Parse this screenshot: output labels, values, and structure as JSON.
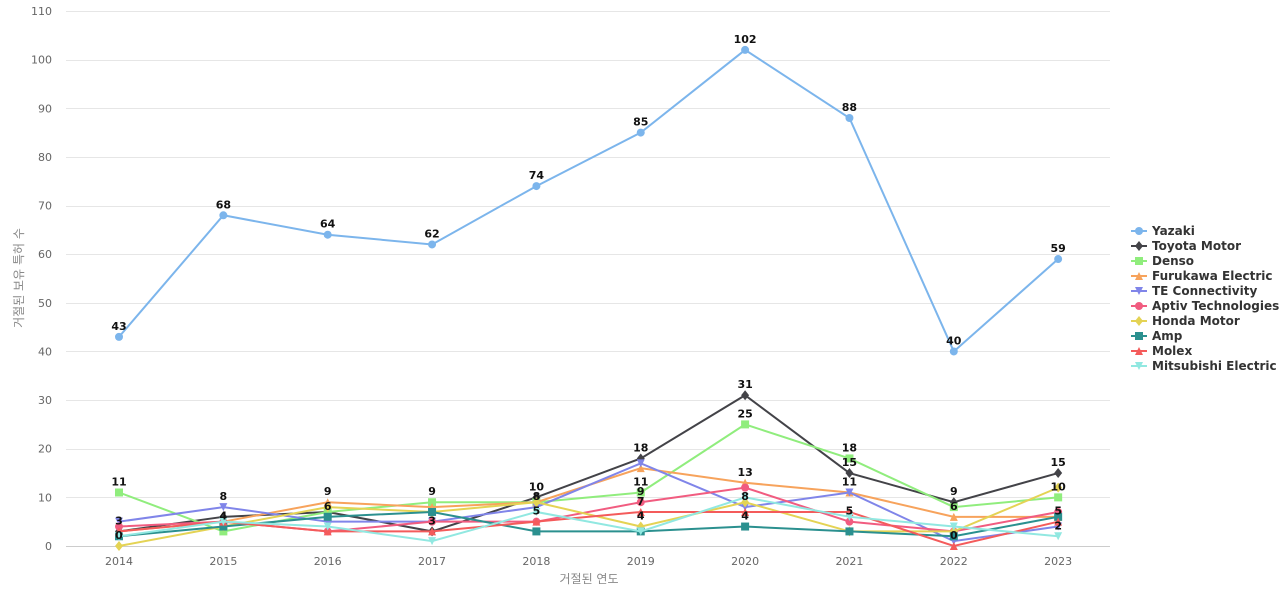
{
  "chart_data": {
    "type": "line",
    "xlabel": "거절된 연도",
    "ylabel": "거절된 보유 특허 수",
    "ylim": [
      0,
      110
    ],
    "ytick_step": 10,
    "categories": [
      "2014",
      "2015",
      "2016",
      "2017",
      "2018",
      "2019",
      "2020",
      "2021",
      "2022",
      "2023"
    ],
    "grid": "horizontal",
    "legend_position": "right",
    "series": [
      {
        "name": "Yazaki",
        "color": "#7cb5ec",
        "marker": "circle",
        "values": [
          43,
          68,
          64,
          62,
          74,
          85,
          102,
          88,
          40,
          59
        ],
        "labeled": [
          true,
          true,
          true,
          true,
          true,
          true,
          true,
          true,
          true,
          true
        ]
      },
      {
        "name": "Toyota Motor",
        "color": "#434348",
        "marker": "diamond",
        "values": [
          3,
          6,
          7,
          3,
          10,
          18,
          31,
          15,
          9,
          15
        ],
        "labeled": [
          false,
          false,
          false,
          false,
          true,
          true,
          true,
          true,
          true,
          true
        ]
      },
      {
        "name": "Denso",
        "color": "#90ed7d",
        "marker": "square",
        "values": [
          11,
          3,
          7,
          9,
          9,
          11,
          25,
          18,
          8,
          10
        ],
        "labeled": [
          true,
          false,
          false,
          true,
          false,
          true,
          true,
          true,
          false,
          true
        ]
      },
      {
        "name": "Furukawa Electric",
        "color": "#f7a35c",
        "marker": "triangle",
        "values": [
          3,
          5,
          9,
          8,
          9,
          16,
          13,
          11,
          6,
          6
        ],
        "labeled": [
          false,
          false,
          true,
          false,
          false,
          false,
          true,
          false,
          true,
          false
        ]
      },
      {
        "name": "TE Connectivity",
        "color": "#8085e9",
        "marker": "triangle-down",
        "values": [
          5,
          8,
          5,
          5,
          8,
          17,
          8,
          11,
          1,
          4
        ],
        "labeled": [
          false,
          true,
          false,
          false,
          true,
          false,
          true,
          true,
          false,
          false
        ]
      },
      {
        "name": "Aptiv Technologies",
        "color": "#f15c80",
        "marker": "circle",
        "values": [
          4,
          5,
          3,
          5,
          5,
          9,
          12,
          5,
          3,
          7
        ],
        "labeled": [
          false,
          false,
          false,
          false,
          false,
          true,
          false,
          true,
          false,
          false
        ]
      },
      {
        "name": "Honda Motor",
        "color": "#e4d354",
        "marker": "diamond",
        "values": [
          0,
          4,
          8,
          7,
          9,
          4,
          9,
          3,
          3,
          12
        ],
        "labeled": [
          true,
          false,
          false,
          false,
          false,
          true,
          false,
          false,
          false,
          false
        ]
      },
      {
        "name": "Amp",
        "color": "#2b908f",
        "marker": "square",
        "values": [
          2,
          4,
          6,
          7,
          3,
          3,
          4,
          3,
          2,
          6
        ],
        "labeled": [
          false,
          true,
          true,
          false,
          false,
          false,
          true,
          false,
          false,
          false
        ]
      },
      {
        "name": "Molex",
        "color": "#f45b5b",
        "marker": "triangle",
        "values": [
          3,
          5,
          3,
          3,
          5,
          7,
          7,
          7,
          0,
          5
        ],
        "labeled": [
          true,
          false,
          false,
          true,
          true,
          true,
          false,
          false,
          true,
          true
        ]
      },
      {
        "name": "Mitsubishi Electric",
        "color": "#91e8e1",
        "marker": "triangle-down",
        "values": [
          2,
          5,
          4,
          1,
          7,
          3,
          10,
          6,
          4,
          2
        ],
        "labeled": [
          false,
          false,
          false,
          false,
          false,
          false,
          false,
          false,
          false,
          true
        ]
      }
    ]
  }
}
